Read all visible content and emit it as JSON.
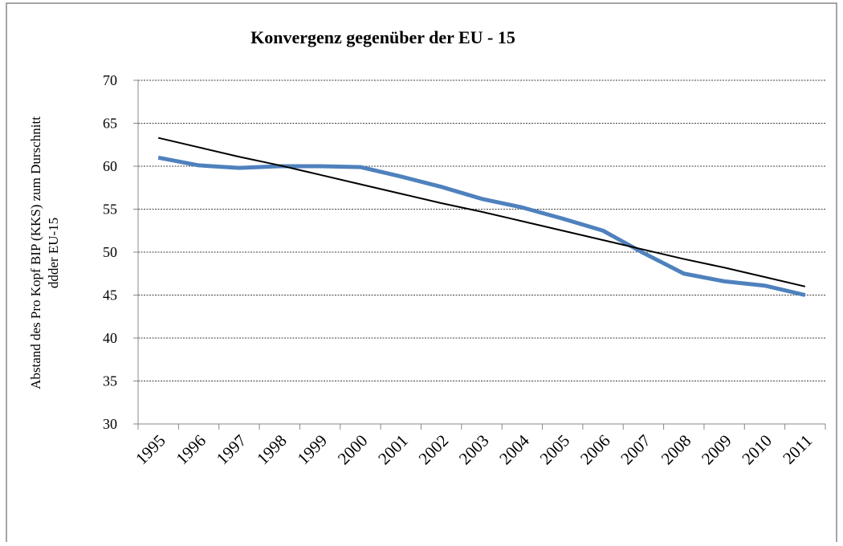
{
  "chart_data": {
    "type": "line",
    "title": "Konvergenz gegenüber der EU - 15",
    "y_label": [
      "Abstand des Pro Kopf BIP (KKS) zum  Durschnitt",
      "ddder EU-15"
    ],
    "categories": [
      "1995",
      "1996",
      "1997",
      "1998",
      "1999",
      "2000",
      "2001",
      "2002",
      "2003",
      "2004",
      "2005",
      "2006",
      "2007",
      "2008",
      "2009",
      "2010",
      "2011"
    ],
    "series": [
      {
        "color": "#4f81bd",
        "values": [
          61,
          60.1,
          59.8,
          60,
          60,
          59.9,
          58.8,
          57.6,
          56.2,
          55.2,
          53.9,
          52.5,
          49.9,
          47.5,
          46.6,
          46.1,
          45
        ]
      },
      {
        "color": "#000000",
        "values": [
          63.3,
          62.2,
          61.1,
          60.1,
          59.0,
          57.9,
          56.8,
          55.7,
          54.7,
          53.6,
          52.5,
          51.4,
          50.3,
          49.2,
          48.2,
          47.1,
          46.0
        ]
      }
    ],
    "ylim": [
      30,
      70
    ],
    "yticks": [
      30,
      35,
      40,
      45,
      50,
      55,
      60,
      65,
      70
    ],
    "grid": true
  }
}
